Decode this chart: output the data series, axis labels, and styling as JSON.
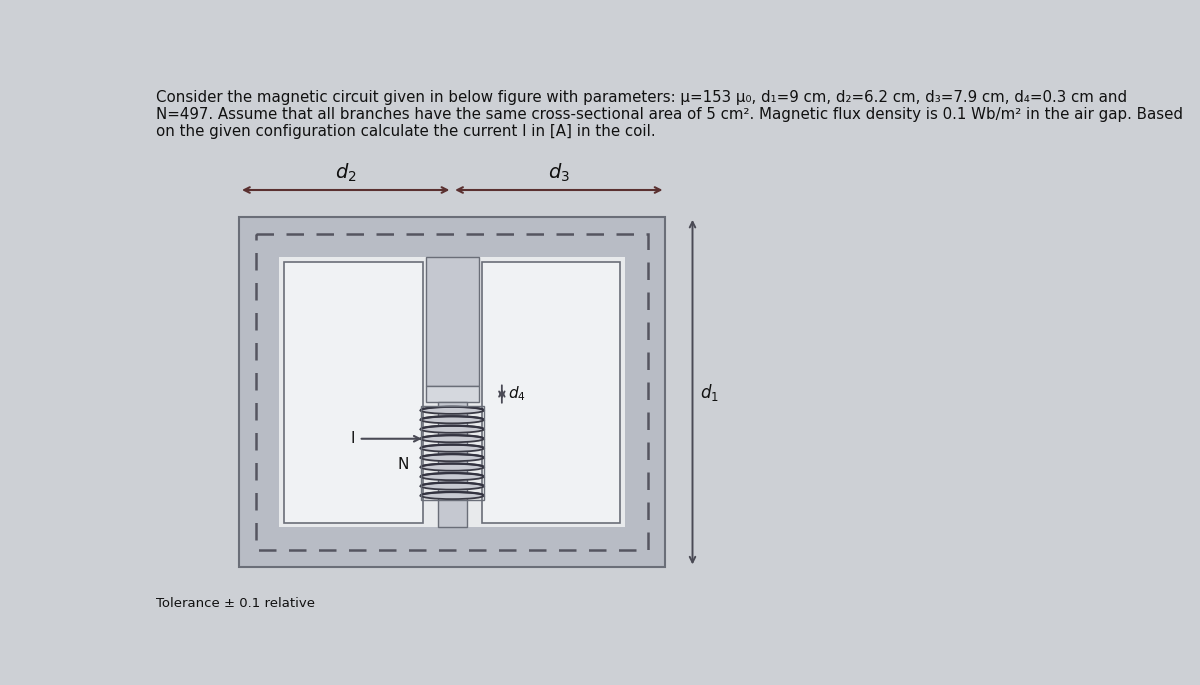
{
  "title_line1": "Consider the magnetic circuit given in below figure with parameters: μ=153 μ₀, d₁=9 cm, d₂=6.2 cm, d₃=7.9 cm, d₄=0.3 cm and",
  "title_line2": "N=497. Assume that all branches have the same cross-sectional area of 5 cm². Magnetic flux density is 0.1 Wb/m² in the air gap. Based",
  "title_line3": "on the given configuration calculate the current I in [A] in the coil.",
  "tolerance_text": "Tolerance ± 0.1 relative",
  "bg_color": "#cdd0d5",
  "core_fill_color": "#b8bcc5",
  "core_edge_color": "#6a6e78",
  "window_fill_color": "#e8eaec",
  "dashed_color": "#555560",
  "arrow_color": "#4a4a55",
  "label_color": "#111111",
  "coil_color": "#333340",
  "gap_fill_color": "#d5d8de",
  "col_fill_color": "#c5c8d0"
}
